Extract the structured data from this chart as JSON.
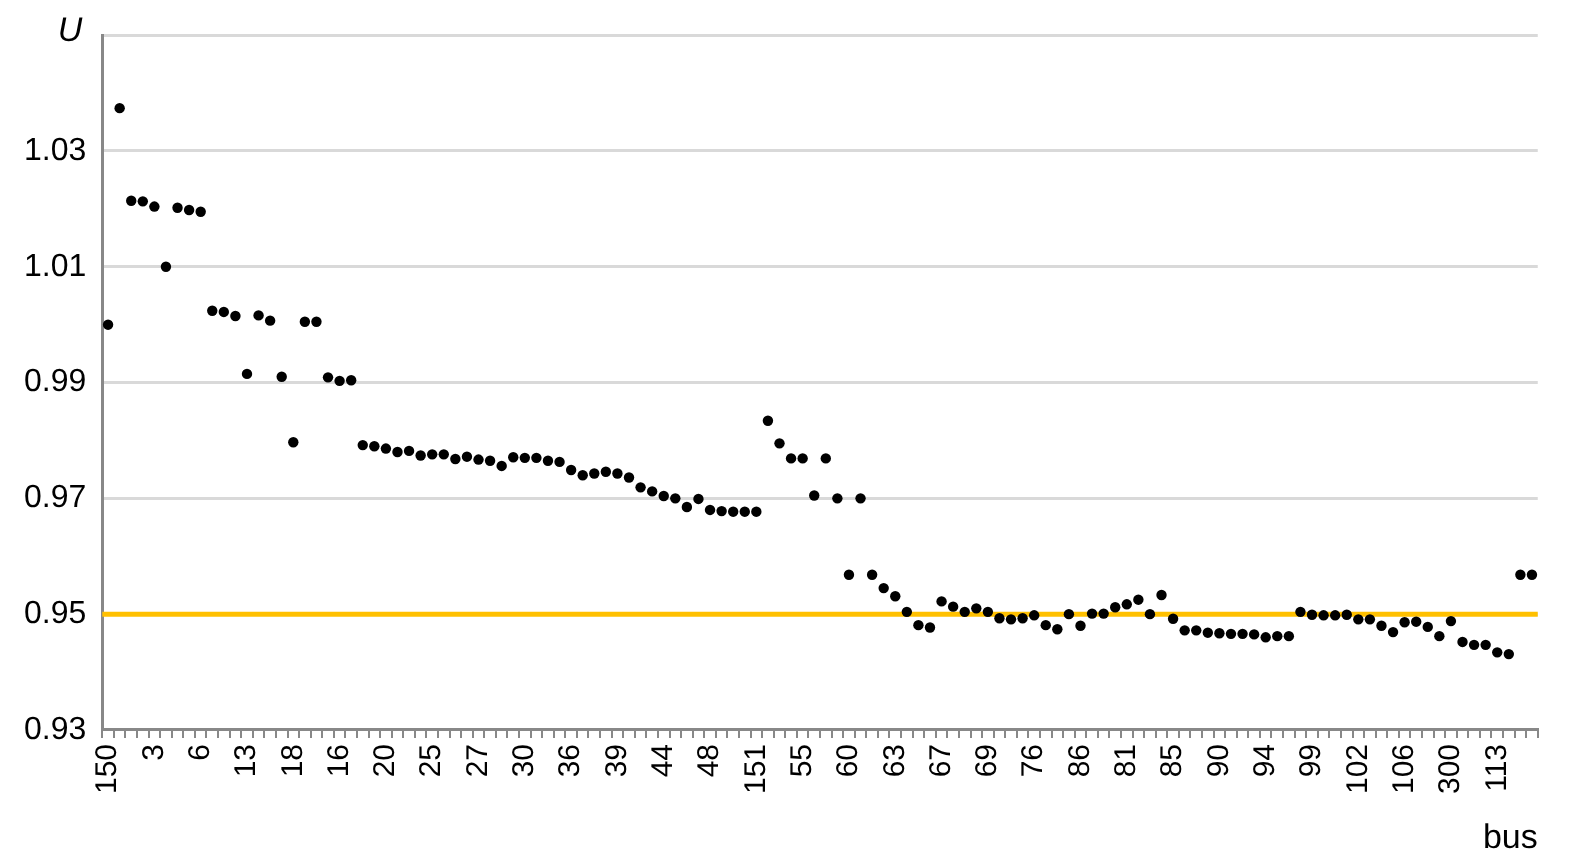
{
  "chart_data": {
    "type": "scatter",
    "xlabel": "bus",
    "ylabel": "U",
    "categories": [
      "150",
      null,
      null,
      null,
      "3",
      null,
      null,
      null,
      "6",
      null,
      null,
      null,
      "13",
      null,
      null,
      null,
      "18",
      null,
      null,
      null,
      "16",
      null,
      null,
      null,
      "20",
      null,
      null,
      null,
      "25",
      null,
      null,
      null,
      "27",
      null,
      null,
      null,
      "30",
      null,
      null,
      null,
      "36",
      null,
      null,
      null,
      "39",
      null,
      null,
      null,
      "44",
      null,
      null,
      null,
      "48",
      null,
      null,
      null,
      "151",
      null,
      null,
      null,
      "55",
      null,
      null,
      null,
      "60",
      null,
      null,
      null,
      "63",
      null,
      null,
      null,
      "67",
      null,
      null,
      null,
      "69",
      null,
      null,
      null,
      "76",
      null,
      null,
      null,
      "86",
      null,
      null,
      null,
      "81",
      null,
      null,
      null,
      "85",
      null,
      null,
      null,
      "90",
      null,
      null,
      null,
      "94",
      null,
      null,
      null,
      "99",
      null,
      null,
      null,
      "102",
      null,
      null,
      null,
      "106",
      null,
      null,
      null,
      "300",
      null,
      null,
      null,
      "113",
      null,
      null,
      null
    ],
    "series": [
      {
        "color": "#000000",
        "values": [
          1.0,
          1.0374,
          1.0214,
          1.0213,
          1.0204,
          1.01,
          1.0202,
          1.0198,
          1.0195,
          1.0024,
          1.0022,
          1.0015,
          0.9915,
          1.0016,
          1.0007,
          0.991,
          0.9797,
          1.0005,
          1.0005,
          0.9909,
          0.9903,
          0.9904,
          0.9792,
          0.979,
          0.9786,
          0.978,
          0.9782,
          0.9774,
          0.9776,
          0.9776,
          0.9768,
          0.9772,
          0.9767,
          0.9765,
          0.9756,
          0.9771,
          0.977,
          0.977,
          0.9765,
          0.9763,
          0.9749,
          0.974,
          0.9743,
          0.9746,
          0.9743,
          0.9736,
          0.9719,
          0.9712,
          0.9704,
          0.97,
          0.9685,
          0.9699,
          0.968,
          0.9678,
          0.9677,
          0.9677,
          0.9677,
          0.9834,
          0.9795,
          0.9769,
          0.9769,
          0.9705,
          0.9769,
          0.97,
          0.9568,
          0.97,
          0.9568,
          0.9545,
          0.9531,
          0.9504,
          0.9481,
          0.9477,
          0.9522,
          0.9513,
          0.9504,
          0.951,
          0.9504,
          0.9493,
          0.9491,
          0.9493,
          0.9498,
          0.9481,
          0.9474,
          0.95,
          0.948,
          0.9501,
          0.9501,
          0.9512,
          0.9517,
          0.9525,
          0.95,
          0.9533,
          0.9492,
          0.9472,
          0.9472,
          0.9468,
          0.9467,
          0.9466,
          0.9466,
          0.9465,
          0.946,
          0.9462,
          0.9462,
          0.9504,
          0.9499,
          0.9498,
          0.9498,
          0.9499,
          0.9491,
          0.9491,
          0.948,
          0.9469,
          0.9486,
          0.9487,
          0.9478,
          0.9462,
          0.9488,
          0.9452,
          0.9447,
          0.9447,
          0.9434,
          0.9431,
          0.9568,
          0.9568
        ]
      }
    ],
    "ylim": [
      0.93,
      1.05
    ],
    "yticks": [
      0.93,
      0.95,
      0.97,
      0.99,
      1.01,
      1.03,
      {
        "value": 1.05,
        "label": null
      }
    ],
    "grid": "y",
    "marker": "circle",
    "legend": false,
    "ref_lines": [
      {
        "axis": "y",
        "value": 0.95,
        "color": "#ffc000"
      }
    ]
  }
}
